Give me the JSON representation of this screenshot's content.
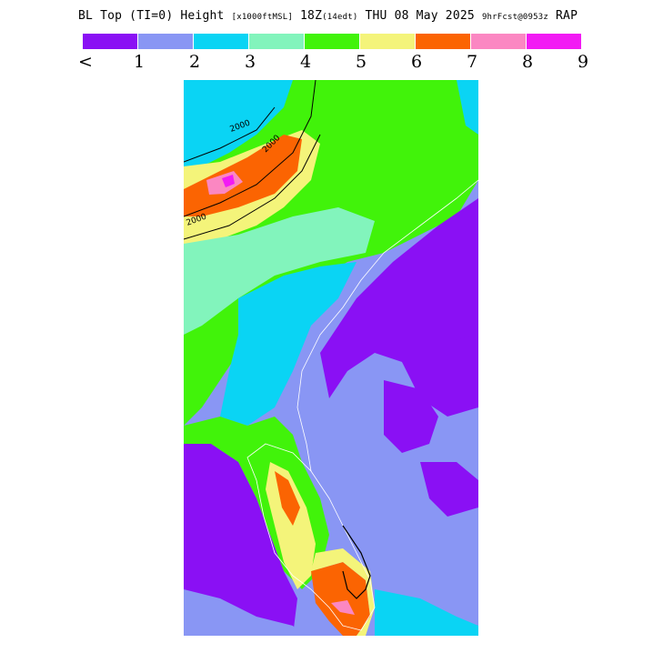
{
  "title": {
    "part1": "BL Top (TI=0) Height",
    "units": "[x1000ftMSL]",
    "part2": "18Z",
    "tz": "(14edt)",
    "part3": "THU 08 May 2025",
    "fcst": "9hrFcst@0953z",
    "model": "RAP"
  },
  "legend": {
    "colors": [
      "#8a10f4",
      "#8996f4",
      "#0ad4f4",
      "#82f4bc",
      "#41f30a",
      "#f4f47a",
      "#fb6402",
      "#fb87c2",
      "#f21af4"
    ],
    "labels": [
      "<",
      "1",
      "2",
      "3",
      "4",
      "5",
      "6",
      "7",
      "8",
      "9"
    ]
  },
  "map": {
    "contour_labels": [
      "2000",
      "2000",
      "2000"
    ]
  }
}
